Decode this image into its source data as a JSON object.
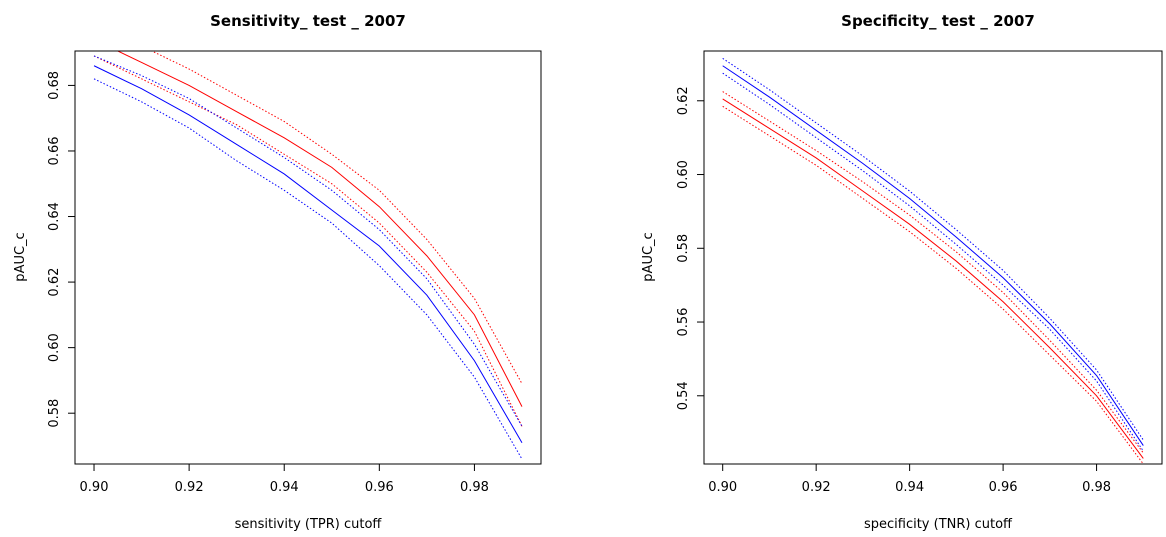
{
  "chart_data": [
    {
      "type": "line",
      "title": "Sensitivity_ test _ 2007",
      "xlabel": "sensitivity (TPR) cutoff",
      "ylabel": "pAUC_c",
      "xlim": [
        0.896,
        0.994
      ],
      "ylim": [
        0.5645,
        0.6905
      ],
      "x_ticks": [
        "0.90",
        "0.92",
        "0.94",
        "0.96",
        "0.98"
      ],
      "y_ticks": [
        "0.58",
        "0.60",
        "0.62",
        "0.64",
        "0.66",
        "0.68"
      ],
      "grid": false,
      "legend": "none",
      "x": [
        0.9,
        0.91,
        0.92,
        0.93,
        0.94,
        0.95,
        0.96,
        0.97,
        0.98,
        0.99
      ],
      "series": [
        {
          "color": "#ff0000",
          "style": "solid",
          "values": [
            0.694,
            0.687,
            0.68,
            0.672,
            0.664,
            0.655,
            0.643,
            0.628,
            0.61,
            0.582
          ]
        },
        {
          "color": "#ff0000",
          "style": "dotted",
          "values": [
            0.699,
            0.692,
            0.685,
            0.677,
            0.669,
            0.659,
            0.648,
            0.633,
            0.615,
            0.589
          ]
        },
        {
          "color": "#ff0000",
          "style": "dotted",
          "values": [
            0.689,
            0.682,
            0.675,
            0.668,
            0.659,
            0.65,
            0.638,
            0.623,
            0.605,
            0.576
          ]
        },
        {
          "color": "#0000ff",
          "style": "solid",
          "values": [
            0.686,
            0.679,
            0.671,
            0.662,
            0.653,
            0.642,
            0.631,
            0.616,
            0.596,
            0.571
          ]
        },
        {
          "color": "#0000ff",
          "style": "dotted",
          "values": [
            0.689,
            0.683,
            0.676,
            0.667,
            0.658,
            0.648,
            0.636,
            0.621,
            0.601,
            0.576
          ]
        },
        {
          "color": "#0000ff",
          "style": "dotted",
          "values": [
            0.682,
            0.675,
            0.667,
            0.657,
            0.648,
            0.638,
            0.625,
            0.61,
            0.591,
            0.566
          ]
        }
      ]
    },
    {
      "type": "line",
      "title": "Specificity_ test _ 2007",
      "xlabel": "specificity (TNR) cutoff",
      "ylabel": "pAUC_c",
      "xlim": [
        0.896,
        0.994
      ],
      "ylim": [
        0.5215,
        0.6335
      ],
      "x_ticks": [
        "0.90",
        "0.92",
        "0.94",
        "0.96",
        "0.98"
      ],
      "y_ticks": [
        "0.54",
        "0.56",
        "0.58",
        "0.60",
        "0.62"
      ],
      "grid": false,
      "legend": "none",
      "x": [
        0.9,
        0.91,
        0.92,
        0.93,
        0.94,
        0.95,
        0.96,
        0.97,
        0.98,
        0.99
      ],
      "series": [
        {
          "color": "#ff0000",
          "style": "solid",
          "values": [
            0.6205,
            0.6125,
            0.6045,
            0.5955,
            0.5865,
            0.5765,
            0.5655,
            0.553,
            0.54,
            0.523
          ]
        },
        {
          "color": "#ff0000",
          "style": "dotted",
          "values": [
            0.6225,
            0.6145,
            0.6065,
            0.598,
            0.589,
            0.579,
            0.568,
            0.555,
            0.5415,
            0.5245
          ]
        },
        {
          "color": "#ff0000",
          "style": "dotted",
          "values": [
            0.6185,
            0.6105,
            0.6025,
            0.5935,
            0.5845,
            0.5745,
            0.5635,
            0.551,
            0.5385,
            0.5215
          ]
        },
        {
          "color": "#0000ff",
          "style": "solid",
          "values": [
            0.6295,
            0.621,
            0.612,
            0.603,
            0.5935,
            0.583,
            0.572,
            0.5595,
            0.5455,
            0.5265
          ]
        },
        {
          "color": "#0000ff",
          "style": "dotted",
          "values": [
            0.6315,
            0.623,
            0.614,
            0.605,
            0.5955,
            0.585,
            0.574,
            0.561,
            0.547,
            0.528
          ]
        },
        {
          "color": "#0000ff",
          "style": "dotted",
          "values": [
            0.6275,
            0.619,
            0.61,
            0.601,
            0.5915,
            0.581,
            0.57,
            0.558,
            0.544,
            0.525
          ]
        }
      ]
    }
  ]
}
